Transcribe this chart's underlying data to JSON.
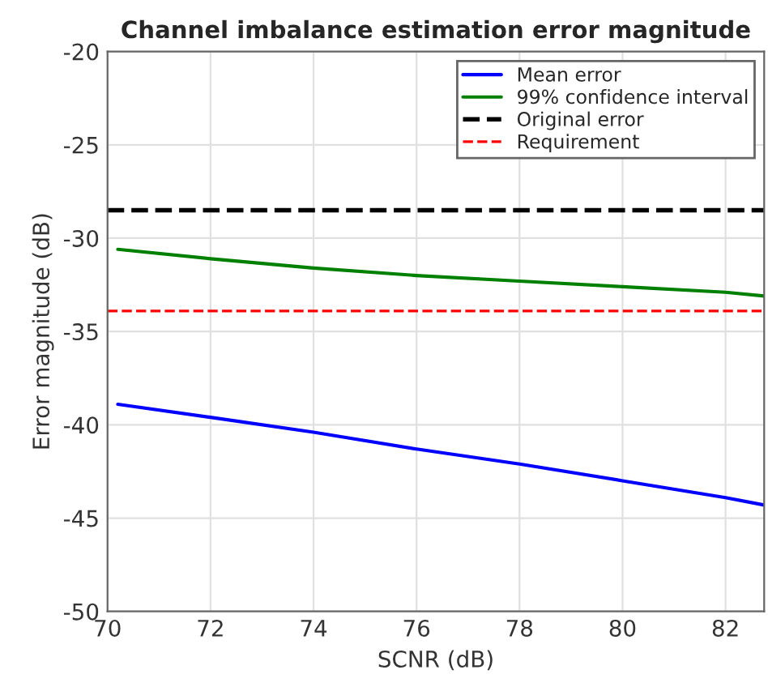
{
  "chart_data": {
    "type": "line",
    "title": "Channel imbalance estimation error magnitude",
    "xlabel": "SCNR (dB)",
    "ylabel": "Error magnitude (dB)",
    "x": [
      70.2,
      72,
      74,
      76,
      78,
      80,
      82,
      82.75
    ],
    "series": [
      {
        "name": "Mean error",
        "color": "#0000ff",
        "values": [
          -38.9,
          -39.6,
          -40.4,
          -41.3,
          -42.1,
          -43.0,
          -43.9,
          -44.3
        ]
      },
      {
        "name": "99% confidence interval",
        "color": "#008000",
        "values": [
          -30.6,
          -31.1,
          -31.6,
          -32.0,
          -32.3,
          -32.6,
          -32.9,
          -33.1
        ]
      }
    ],
    "ref_lines": [
      {
        "axis": "y",
        "value": -28.5,
        "label": "Original error",
        "color": "#000000",
        "line_style": "dashed"
      },
      {
        "axis": "y",
        "value": -33.9,
        "label": "Requirement",
        "color": "#ff0000",
        "line_style": "dashed"
      }
    ],
    "xlim": [
      70,
      82.75
    ],
    "xticks": [
      70,
      72,
      74,
      76,
      78,
      80,
      82
    ],
    "ylim": [
      -50,
      -20
    ],
    "yticks": [
      -50,
      -45,
      -40,
      -35,
      -30,
      -25,
      -20
    ],
    "grid": true,
    "legend": "top right",
    "line_style": "solid",
    "marker": "none"
  }
}
